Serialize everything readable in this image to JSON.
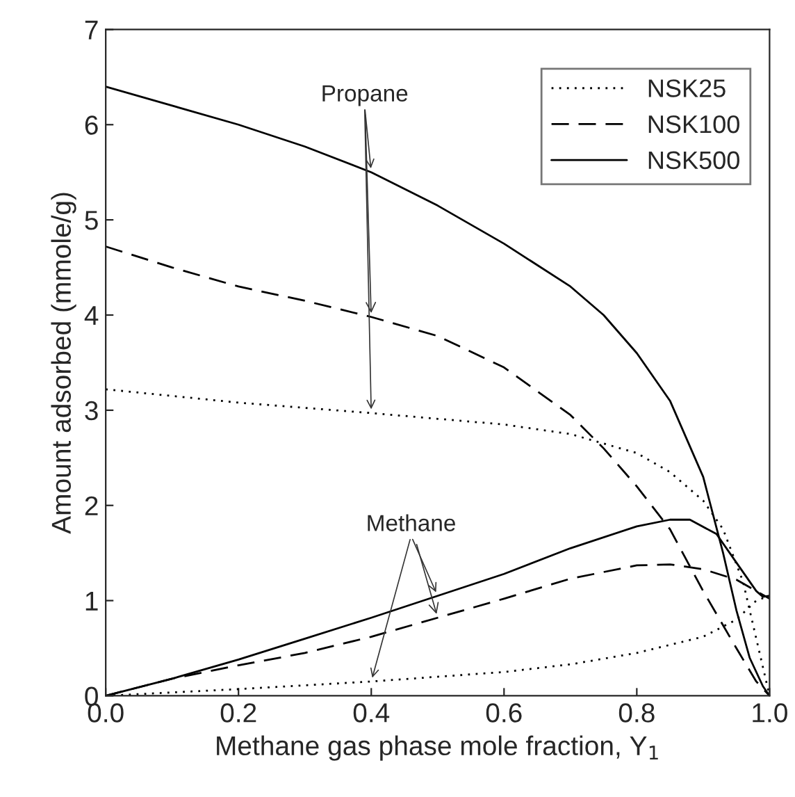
{
  "chart_data": {
    "type": "line",
    "xlabel": "Methane gas phase mole fraction, Y$_{1}$",
    "ylabel": "Amount adsorbed (mmole/g)",
    "xlim": [
      0,
      1
    ],
    "xticks": [
      {
        "value": 0,
        "label": "0.0"
      },
      {
        "value": 0.2,
        "label": "0.2"
      },
      {
        "value": 0.4,
        "label": "0.4"
      },
      {
        "value": 0.6,
        "label": "0.6"
      },
      {
        "value": 0.8,
        "label": "0.8"
      },
      {
        "value": 1,
        "label": "1.0"
      }
    ],
    "ylim": [
      0,
      7
    ],
    "yticks": [
      0,
      1,
      2,
      3,
      4,
      5,
      6,
      7
    ],
    "grid": false,
    "legend": "top right",
    "annotations": [
      {
        "text": "Propane",
        "x": 0.4,
        "y": 3.98
      },
      {
        "text": "Methane",
        "x": 0.5,
        "y": 0.82
      }
    ],
    "series": [
      {
        "name": "NSK25",
        "color": "#000000",
        "line_style": "dotted",
        "x": [
          0,
          0.2,
          0.4,
          0.6,
          0.7,
          0.8,
          0.85,
          0.9,
          0.93,
          0.96,
          0.98,
          1.0
        ],
        "values": [
          3.22,
          3.08,
          2.97,
          2.85,
          2.75,
          2.55,
          2.35,
          2.05,
          1.75,
          1.2,
          0.6,
          0.0
        ]
      },
      {
        "name": "NSK100",
        "color": "#000000",
        "line_style": "dashed",
        "x": [
          0,
          0.1,
          0.2,
          0.3,
          0.4,
          0.5,
          0.6,
          0.7,
          0.75,
          0.8,
          0.85,
          0.9,
          0.95,
          0.98,
          1.0
        ],
        "values": [
          4.72,
          4.5,
          4.3,
          4.15,
          3.98,
          3.78,
          3.45,
          2.95,
          2.6,
          2.2,
          1.75,
          1.1,
          0.5,
          0.15,
          0.0
        ]
      },
      {
        "name": "NSK500",
        "color": "#000000",
        "line_style": "solid",
        "x": [
          0,
          0.1,
          0.2,
          0.3,
          0.4,
          0.5,
          0.6,
          0.7,
          0.75,
          0.8,
          0.85,
          0.9,
          0.93,
          0.95,
          0.97,
          0.99,
          1.0
        ],
        "values": [
          6.4,
          6.2,
          6.0,
          5.77,
          5.5,
          5.15,
          4.75,
          4.3,
          4.0,
          3.6,
          3.1,
          2.3,
          1.5,
          0.9,
          0.4,
          0.1,
          0.0
        ]
      },
      {
        "color": "#000000",
        "line_style": "dotted",
        "x": [
          0,
          0.2,
          0.4,
          0.6,
          0.7,
          0.8,
          0.9,
          0.95,
          0.98,
          1.0
        ],
        "values": [
          0,
          0.07,
          0.15,
          0.25,
          0.33,
          0.45,
          0.62,
          0.8,
          1.0,
          1.05
        ]
      },
      {
        "color": "#000000",
        "line_style": "dashed",
        "x": [
          0,
          0.1,
          0.2,
          0.3,
          0.4,
          0.5,
          0.6,
          0.7,
          0.8,
          0.85,
          0.9,
          0.95,
          0.98,
          1.0
        ],
        "values": [
          0,
          0.18,
          0.32,
          0.45,
          0.62,
          0.82,
          1.02,
          1.23,
          1.37,
          1.38,
          1.33,
          1.22,
          1.1,
          1.02
        ]
      },
      {
        "color": "#000000",
        "line_style": "solid",
        "x": [
          0,
          0.1,
          0.2,
          0.3,
          0.4,
          0.5,
          0.6,
          0.7,
          0.8,
          0.85,
          0.88,
          0.92,
          0.95,
          0.98,
          0.99,
          1.0
        ],
        "values": [
          0,
          0.18,
          0.38,
          0.6,
          0.82,
          1.05,
          1.28,
          1.55,
          1.78,
          1.85,
          1.85,
          1.7,
          1.4,
          1.1,
          1.04,
          1.05
        ]
      }
    ]
  }
}
